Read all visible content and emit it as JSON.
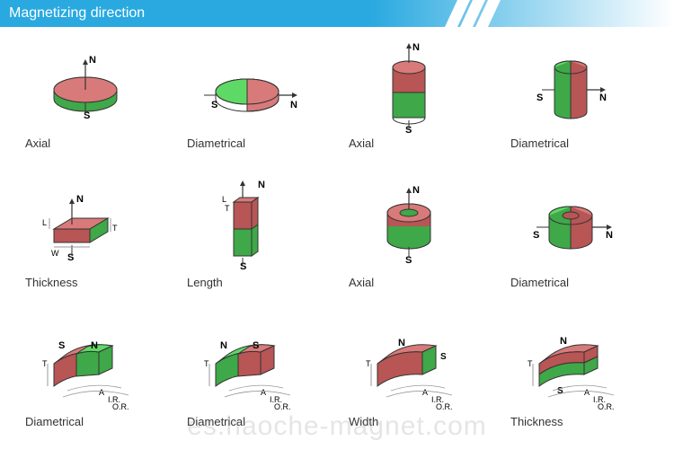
{
  "header": {
    "title": "Magnetizing direction"
  },
  "colors": {
    "header_bg": "#29a9e0",
    "north": "#d97a7a",
    "north_dark": "#b85555",
    "south": "#5fd966",
    "south_dark": "#3fa848",
    "stroke": "#333333",
    "label": "#000000",
    "dim": "#999999",
    "caption": "#333333"
  },
  "labels": {
    "N": "N",
    "S": "S",
    "L": "L",
    "W": "W",
    "T": "T",
    "A": "A",
    "IR": "I.R.",
    "OR": "O.R."
  },
  "cells": [
    {
      "caption": "Axial",
      "type": "disc_axial"
    },
    {
      "caption": "Diametrical",
      "type": "disc_diam"
    },
    {
      "caption": "Axial",
      "type": "cyl_axial"
    },
    {
      "caption": "Diametrical",
      "type": "cyl_diam"
    },
    {
      "caption": "Thickness",
      "type": "block_thick"
    },
    {
      "caption": "Length",
      "type": "block_len"
    },
    {
      "caption": "Axial",
      "type": "ring_axial"
    },
    {
      "caption": "Diametrical",
      "type": "ring_diam"
    },
    {
      "caption": "Diametrical",
      "type": "arc_diam1"
    },
    {
      "caption": "Diametrical",
      "type": "arc_diam2"
    },
    {
      "caption": "Width",
      "type": "arc_width"
    },
    {
      "caption": "Thickness",
      "type": "arc_thick"
    }
  ],
  "watermark": "es.haoche-magnet.com",
  "style": {
    "font_title": 16,
    "font_caption": 13,
    "font_label": 11,
    "font_dim": 9,
    "stroke_w": 1
  }
}
